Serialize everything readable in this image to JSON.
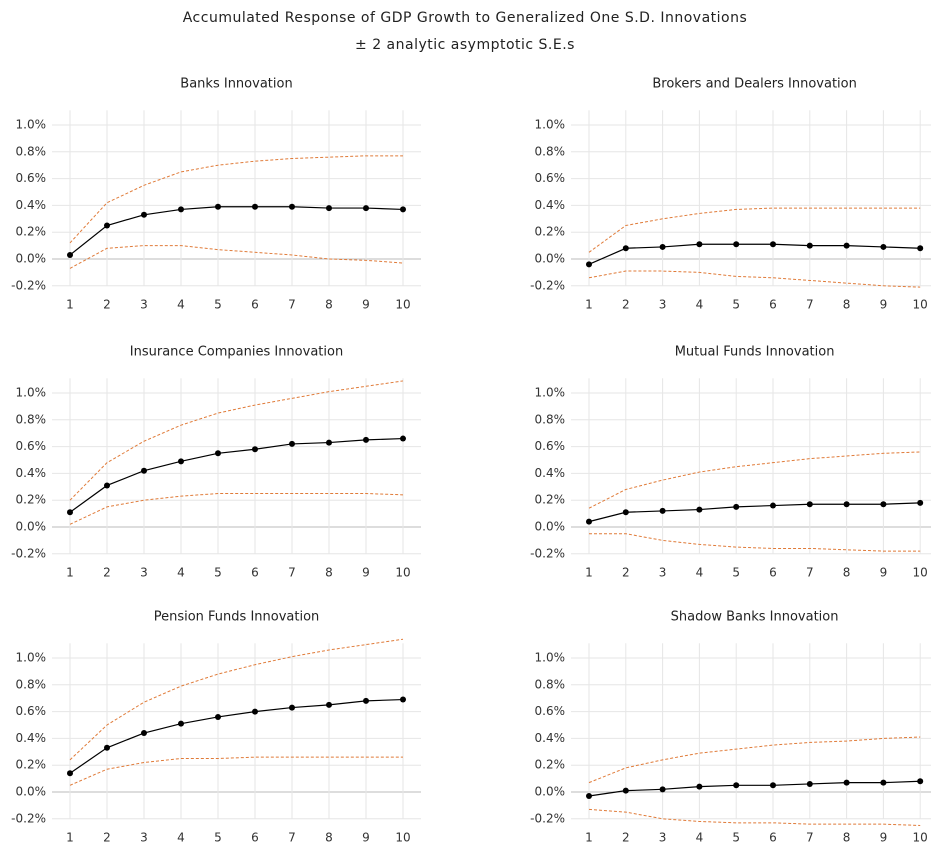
{
  "header": {
    "title": "Accumulated Response of GDP Growth to Generalized One S.D. Innovations",
    "subtitle": "± 2 analytic asymptotic S.E.s"
  },
  "chart_data": [
    {
      "type": "line",
      "title": "Banks Innovation",
      "categories": [
        "1",
        "2",
        "3",
        "4",
        "5",
        "6",
        "7",
        "8",
        "9",
        "10"
      ],
      "series": [
        {
          "color": "#000000",
          "markers": true,
          "dashed": false,
          "values": [
            0.03,
            0.25,
            0.33,
            0.37,
            0.39,
            0.39,
            0.39,
            0.38,
            0.38,
            0.37
          ]
        },
        {
          "color": "#e07b39",
          "markers": false,
          "dashed": true,
          "values": [
            0.12,
            0.42,
            0.55,
            0.65,
            0.7,
            0.73,
            0.75,
            0.76,
            0.77,
            0.77
          ]
        },
        {
          "color": "#e07b39",
          "markers": false,
          "dashed": true,
          "values": [
            -0.07,
            0.08,
            0.1,
            0.1,
            0.07,
            0.05,
            0.03,
            0.0,
            -0.01,
            -0.03
          ]
        }
      ],
      "ylim": [
        -0.2,
        1.2
      ],
      "yticks": [
        {
          "value": -0.2,
          "label": "-0.2%"
        },
        {
          "value": 0,
          "label": "0.0%"
        },
        {
          "value": 0.2,
          "label": "0.2%"
        },
        {
          "value": 0.4,
          "label": "0.4%"
        },
        {
          "value": 0.6,
          "label": "0.6%"
        },
        {
          "value": 0.8,
          "label": "0.8%"
        },
        {
          "value": 1.0,
          "label": "1.0%"
        }
      ],
      "grid": true
    },
    {
      "type": "line",
      "title": "Brokers and Dealers Innovation",
      "categories": [
        "1",
        "2",
        "3",
        "4",
        "5",
        "6",
        "7",
        "8",
        "9",
        "10"
      ],
      "series": [
        {
          "color": "#000000",
          "markers": true,
          "dashed": false,
          "values": [
            -0.04,
            0.08,
            0.09,
            0.11,
            0.11,
            0.11,
            0.1,
            0.1,
            0.09,
            0.08
          ]
        },
        {
          "color": "#e07b39",
          "markers": false,
          "dashed": true,
          "values": [
            0.05,
            0.25,
            0.3,
            0.34,
            0.37,
            0.38,
            0.38,
            0.38,
            0.38,
            0.38
          ]
        },
        {
          "color": "#e07b39",
          "markers": false,
          "dashed": true,
          "values": [
            -0.14,
            -0.09,
            -0.09,
            -0.1,
            -0.13,
            -0.14,
            -0.16,
            -0.18,
            -0.2,
            -0.21
          ]
        }
      ],
      "ylim": [
        -0.2,
        1.2
      ],
      "yticks": [
        {
          "value": -0.2,
          "label": "-0.2%"
        },
        {
          "value": 0,
          "label": "0.0%"
        },
        {
          "value": 0.2,
          "label": "0.2%"
        },
        {
          "value": 0.4,
          "label": "0.4%"
        },
        {
          "value": 0.6,
          "label": "0.6%"
        },
        {
          "value": 0.8,
          "label": "0.8%"
        },
        {
          "value": 1.0,
          "label": "1.0%"
        }
      ],
      "grid": true
    },
    {
      "type": "line",
      "title": "Insurance Companies Innovation",
      "categories": [
        "1",
        "2",
        "3",
        "4",
        "5",
        "6",
        "7",
        "8",
        "9",
        "10"
      ],
      "series": [
        {
          "color": "#000000",
          "markers": true,
          "dashed": false,
          "values": [
            0.11,
            0.31,
            0.42,
            0.49,
            0.55,
            0.58,
            0.62,
            0.63,
            0.65,
            0.66
          ]
        },
        {
          "color": "#e07b39",
          "markers": false,
          "dashed": true,
          "values": [
            0.2,
            0.48,
            0.64,
            0.76,
            0.85,
            0.91,
            0.96,
            1.01,
            1.05,
            1.09
          ]
        },
        {
          "color": "#e07b39",
          "markers": false,
          "dashed": true,
          "values": [
            0.02,
            0.15,
            0.2,
            0.23,
            0.25,
            0.25,
            0.25,
            0.25,
            0.25,
            0.24
          ]
        }
      ],
      "ylim": [
        -0.2,
        1.2
      ],
      "yticks": [
        {
          "value": -0.2,
          "label": "-0.2%"
        },
        {
          "value": 0,
          "label": "0.0%"
        },
        {
          "value": 0.2,
          "label": "0.2%"
        },
        {
          "value": 0.4,
          "label": "0.4%"
        },
        {
          "value": 0.6,
          "label": "0.6%"
        },
        {
          "value": 0.8,
          "label": "0.8%"
        },
        {
          "value": 1.0,
          "label": "1.0%"
        }
      ],
      "grid": true
    },
    {
      "type": "line",
      "title": "Mutual Funds Innovation",
      "categories": [
        "1",
        "2",
        "3",
        "4",
        "5",
        "6",
        "7",
        "8",
        "9",
        "10"
      ],
      "series": [
        {
          "color": "#000000",
          "markers": true,
          "dashed": false,
          "values": [
            0.04,
            0.11,
            0.12,
            0.13,
            0.15,
            0.16,
            0.17,
            0.17,
            0.17,
            0.18
          ]
        },
        {
          "color": "#e07b39",
          "markers": false,
          "dashed": true,
          "values": [
            0.14,
            0.28,
            0.35,
            0.41,
            0.45,
            0.48,
            0.51,
            0.53,
            0.55,
            0.56
          ]
        },
        {
          "color": "#e07b39",
          "markers": false,
          "dashed": true,
          "values": [
            -0.05,
            -0.05,
            -0.1,
            -0.13,
            -0.15,
            -0.16,
            -0.16,
            -0.17,
            -0.18,
            -0.18
          ]
        }
      ],
      "ylim": [
        -0.2,
        1.2
      ],
      "yticks": [
        {
          "value": -0.2,
          "label": "-0.2%"
        },
        {
          "value": 0,
          "label": "0.0%"
        },
        {
          "value": 0.2,
          "label": "0.2%"
        },
        {
          "value": 0.4,
          "label": "0.4%"
        },
        {
          "value": 0.6,
          "label": "0.6%"
        },
        {
          "value": 0.8,
          "label": "0.8%"
        },
        {
          "value": 1.0,
          "label": "1.0%"
        }
      ],
      "grid": true
    },
    {
      "type": "line",
      "title": "Pension Funds Innovation",
      "categories": [
        "1",
        "2",
        "3",
        "4",
        "5",
        "6",
        "7",
        "8",
        "9",
        "10"
      ],
      "series": [
        {
          "color": "#000000",
          "markers": true,
          "dashed": false,
          "values": [
            0.14,
            0.33,
            0.44,
            0.51,
            0.56,
            0.6,
            0.63,
            0.65,
            0.68,
            0.69
          ]
        },
        {
          "color": "#e07b39",
          "markers": false,
          "dashed": true,
          "values": [
            0.24,
            0.5,
            0.67,
            0.79,
            0.88,
            0.95,
            1.01,
            1.06,
            1.1,
            1.14
          ]
        },
        {
          "color": "#e07b39",
          "markers": false,
          "dashed": true,
          "values": [
            0.05,
            0.17,
            0.22,
            0.25,
            0.25,
            0.26,
            0.26,
            0.26,
            0.26,
            0.26
          ]
        }
      ],
      "ylim": [
        -0.2,
        1.2
      ],
      "yticks": [
        {
          "value": -0.2,
          "label": "-0.2%"
        },
        {
          "value": 0,
          "label": "0.0%"
        },
        {
          "value": 0.2,
          "label": "0.2%"
        },
        {
          "value": 0.4,
          "label": "0.4%"
        },
        {
          "value": 0.6,
          "label": "0.6%"
        },
        {
          "value": 0.8,
          "label": "0.8%"
        },
        {
          "value": 1.0,
          "label": "1.0%"
        }
      ],
      "grid": true
    },
    {
      "type": "line",
      "title": "Shadow Banks Innovation",
      "categories": [
        "1",
        "2",
        "3",
        "4",
        "5",
        "6",
        "7",
        "8",
        "9",
        "10"
      ],
      "series": [
        {
          "color": "#000000",
          "markers": true,
          "dashed": false,
          "values": [
            -0.03,
            0.01,
            0.02,
            0.04,
            0.05,
            0.05,
            0.06,
            0.07,
            0.07,
            0.08
          ]
        },
        {
          "color": "#e07b39",
          "markers": false,
          "dashed": true,
          "values": [
            0.07,
            0.18,
            0.24,
            0.29,
            0.32,
            0.35,
            0.37,
            0.38,
            0.4,
            0.41
          ]
        },
        {
          "color": "#e07b39",
          "markers": false,
          "dashed": true,
          "values": [
            -0.13,
            -0.15,
            -0.2,
            -0.22,
            -0.23,
            -0.23,
            -0.24,
            -0.24,
            -0.24,
            -0.25
          ]
        }
      ],
      "ylim": [
        -0.2,
        1.2
      ],
      "yticks": [
        {
          "value": -0.2,
          "label": "-0.2%"
        },
        {
          "value": 0,
          "label": "0.0%"
        },
        {
          "value": 0.2,
          "label": "0.2%"
        },
        {
          "value": 0.4,
          "label": "0.4%"
        },
        {
          "value": 0.6,
          "label": "0.6%"
        },
        {
          "value": 0.8,
          "label": "0.8%"
        },
        {
          "value": 1.0,
          "label": "1.0%"
        }
      ],
      "grid": true
    }
  ]
}
